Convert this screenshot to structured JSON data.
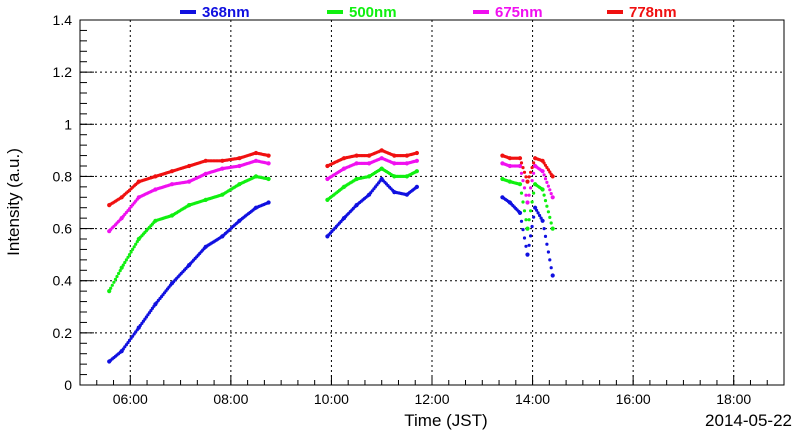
{
  "chart_data": {
    "type": "scatter",
    "title": "",
    "xlabel": "Time (JST)",
    "ylabel": "Intensity (a.u.)",
    "date_label": "2014-05-22",
    "x_unit": "hours (JST)",
    "xlim": [
      5.0,
      19.0
    ],
    "ylim": [
      0,
      1.4
    ],
    "x_ticks": [
      6,
      8,
      10,
      12,
      14,
      16,
      18
    ],
    "x_tick_labels": [
      "06:00",
      "08:00",
      "10:00",
      "12:00",
      "14:00",
      "16:00",
      "18:00"
    ],
    "y_ticks": [
      0,
      0.2,
      0.4,
      0.6,
      0.8,
      1,
      1.2,
      1.4
    ],
    "y_tick_labels": [
      "0",
      "0.2",
      "0.4",
      "0.6",
      "0.8",
      "1",
      "1.2",
      "1.4"
    ],
    "grid": true,
    "legend_position": "top",
    "series": [
      {
        "name": "368nm",
        "color": "#1010e0",
        "x": [
          5.58,
          5.83,
          6.17,
          6.5,
          6.83,
          7.17,
          7.5,
          7.83,
          8.17,
          8.5,
          8.75,
          9.92,
          10.25,
          10.5,
          10.75,
          11.0,
          11.25,
          11.5,
          11.7,
          13.4,
          13.55,
          13.75,
          13.9,
          14.05,
          14.2,
          14.4
        ],
        "y": [
          0.09,
          0.13,
          0.22,
          0.31,
          0.39,
          0.46,
          0.53,
          0.57,
          0.63,
          0.68,
          0.7,
          0.57,
          0.64,
          0.69,
          0.73,
          0.79,
          0.74,
          0.73,
          0.76,
          0.72,
          0.7,
          0.66,
          0.5,
          0.68,
          0.63,
          0.42
        ]
      },
      {
        "name": "500nm",
        "color": "#10f010",
        "x": [
          5.58,
          5.83,
          6.17,
          6.5,
          6.83,
          7.17,
          7.5,
          7.83,
          8.17,
          8.5,
          8.75,
          9.92,
          10.25,
          10.5,
          10.75,
          11.0,
          11.25,
          11.5,
          11.7,
          13.4,
          13.55,
          13.75,
          13.9,
          14.05,
          14.2,
          14.4
        ],
        "y": [
          0.36,
          0.45,
          0.56,
          0.63,
          0.65,
          0.69,
          0.71,
          0.73,
          0.77,
          0.8,
          0.79,
          0.71,
          0.76,
          0.79,
          0.8,
          0.83,
          0.8,
          0.8,
          0.82,
          0.79,
          0.78,
          0.77,
          0.6,
          0.77,
          0.75,
          0.6
        ]
      },
      {
        "name": "675nm",
        "color": "#f010f0",
        "x": [
          5.58,
          5.83,
          6.17,
          6.5,
          6.83,
          7.17,
          7.5,
          7.83,
          8.17,
          8.5,
          8.75,
          9.92,
          10.25,
          10.5,
          10.75,
          11.0,
          11.25,
          11.5,
          11.7,
          13.4,
          13.55,
          13.75,
          13.9,
          14.05,
          14.2,
          14.4
        ],
        "y": [
          0.59,
          0.64,
          0.72,
          0.75,
          0.77,
          0.78,
          0.81,
          0.83,
          0.84,
          0.86,
          0.85,
          0.79,
          0.83,
          0.85,
          0.85,
          0.87,
          0.85,
          0.85,
          0.86,
          0.85,
          0.84,
          0.84,
          0.7,
          0.84,
          0.82,
          0.72
        ]
      },
      {
        "name": "778nm",
        "color": "#f01010",
        "x": [
          5.58,
          5.83,
          6.17,
          6.5,
          6.83,
          7.17,
          7.5,
          7.83,
          8.17,
          8.5,
          8.75,
          9.92,
          10.25,
          10.5,
          10.75,
          11.0,
          11.25,
          11.5,
          11.7,
          13.4,
          13.55,
          13.75,
          13.9,
          14.05,
          14.2,
          14.4
        ],
        "y": [
          0.69,
          0.72,
          0.78,
          0.8,
          0.82,
          0.84,
          0.86,
          0.86,
          0.87,
          0.89,
          0.88,
          0.84,
          0.87,
          0.88,
          0.88,
          0.9,
          0.88,
          0.88,
          0.89,
          0.88,
          0.87,
          0.87,
          0.78,
          0.87,
          0.86,
          0.8
        ]
      }
    ]
  }
}
